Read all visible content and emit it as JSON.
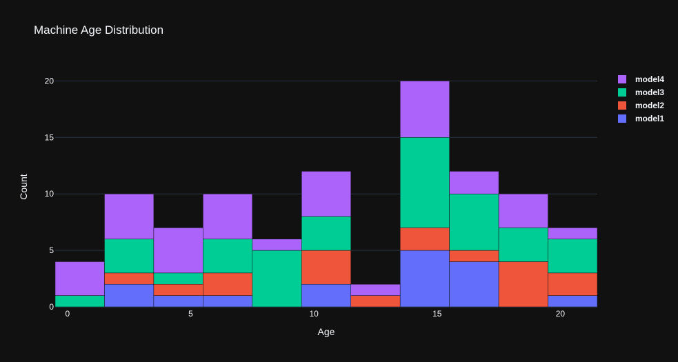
{
  "chart_data": {
    "type": "bar",
    "title": "Machine Age Distribution",
    "xlabel": "Age",
    "ylabel": "Count",
    "barmode": "stack",
    "bin_edges": [
      -0.5,
      1.5,
      3.5,
      5.5,
      7.5,
      9.5,
      11.5,
      13.5,
      15.5,
      17.5,
      19.5,
      21.5
    ],
    "xlim": [
      -0.5,
      21.5
    ],
    "ylim": [
      0,
      21
    ],
    "xticks": [
      0,
      5,
      10,
      15,
      20
    ],
    "yticks": [
      0,
      5,
      10,
      15,
      20
    ],
    "grid": true,
    "legend_position": "top-right",
    "series": [
      {
        "name": "model1",
        "color": "#636efa",
        "values": [
          0,
          2,
          1,
          1,
          0,
          2,
          0,
          5,
          4,
          0,
          1
        ]
      },
      {
        "name": "model2",
        "color": "#ef553b",
        "values": [
          0,
          1,
          1,
          2,
          0,
          3,
          1,
          2,
          1,
          4,
          2
        ]
      },
      {
        "name": "model3",
        "color": "#00cc96",
        "values": [
          1,
          3,
          1,
          3,
          5,
          3,
          0,
          8,
          5,
          3,
          3
        ]
      },
      {
        "name": "model4",
        "color": "#ab63fa",
        "values": [
          3,
          4,
          4,
          4,
          1,
          4,
          1,
          5,
          2,
          3,
          1
        ]
      }
    ]
  }
}
